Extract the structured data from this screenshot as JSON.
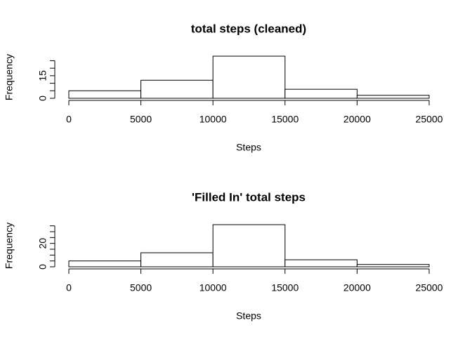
{
  "chart_data": [
    {
      "type": "histogram",
      "title": "total steps (cleaned)",
      "x_label": "Steps",
      "y_label": "Frequency",
      "bins": [
        0,
        5000,
        10000,
        15000,
        20000,
        25000
      ],
      "counts": [
        5,
        12,
        28,
        6,
        2
      ],
      "xlim": [
        0,
        25000
      ],
      "xticks": [
        0,
        5000,
        10000,
        15000,
        20000,
        25000
      ],
      "ylim": [
        0,
        28
      ],
      "yticks": [
        0,
        15
      ],
      "yticks_minor": [
        5,
        10,
        20,
        25
      ],
      "color": "#ffffff"
    },
    {
      "type": "histogram",
      "title": "'Filled In' total steps",
      "x_label": "Steps",
      "y_label": "Frequency",
      "bins": [
        0,
        5000,
        10000,
        15000,
        20000,
        25000
      ],
      "counts": [
        5,
        12,
        36,
        6,
        2
      ],
      "xlim": [
        0,
        25000
      ],
      "xticks": [
        0,
        5000,
        10000,
        15000,
        20000,
        25000
      ],
      "ylim": [
        0,
        36
      ],
      "yticks": [
        0,
        20
      ],
      "yticks_minor": [
        5,
        10,
        15,
        25,
        30,
        35
      ],
      "color": "#ffffff"
    }
  ]
}
